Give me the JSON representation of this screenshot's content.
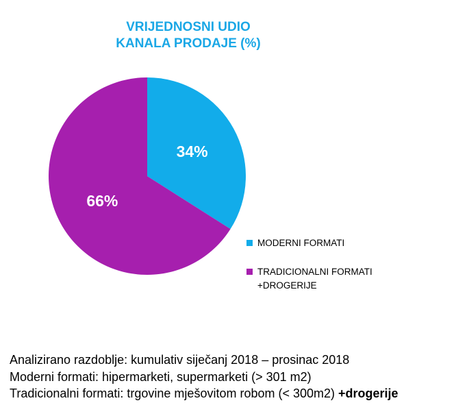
{
  "chart_data": {
    "type": "pie",
    "title_lines": [
      "VRIJEDNOSNI UDIO",
      "KANALA PRODAJE (%)"
    ],
    "slices": [
      {
        "label": "MODERNI FORMATI",
        "value": 34,
        "value_label": "34%",
        "color": "#12acea"
      },
      {
        "label": "TRADICIONALNI FORMATI +DROGERIJE",
        "label_lines": [
          "TRADICIONALNI FORMATI",
          "+DROGERIJE"
        ],
        "value": 66,
        "value_label": "66%",
        "color": "#a61fae"
      }
    ],
    "legend_position": "right",
    "value_label_color": "#ffffff",
    "title_color": "#1aa7e6"
  },
  "notes": {
    "line1": "Analizirano razdoblje: kumulativ siječanj 2018 – prosinac 2018",
    "line2": "Moderni formati: hipermarketi, supermarketi (> 301 m2)",
    "line3_text": "Tradicionalni formati: trgovine mješovitom robom (< 300m2) ",
    "line3_bold": "+drogerije"
  }
}
